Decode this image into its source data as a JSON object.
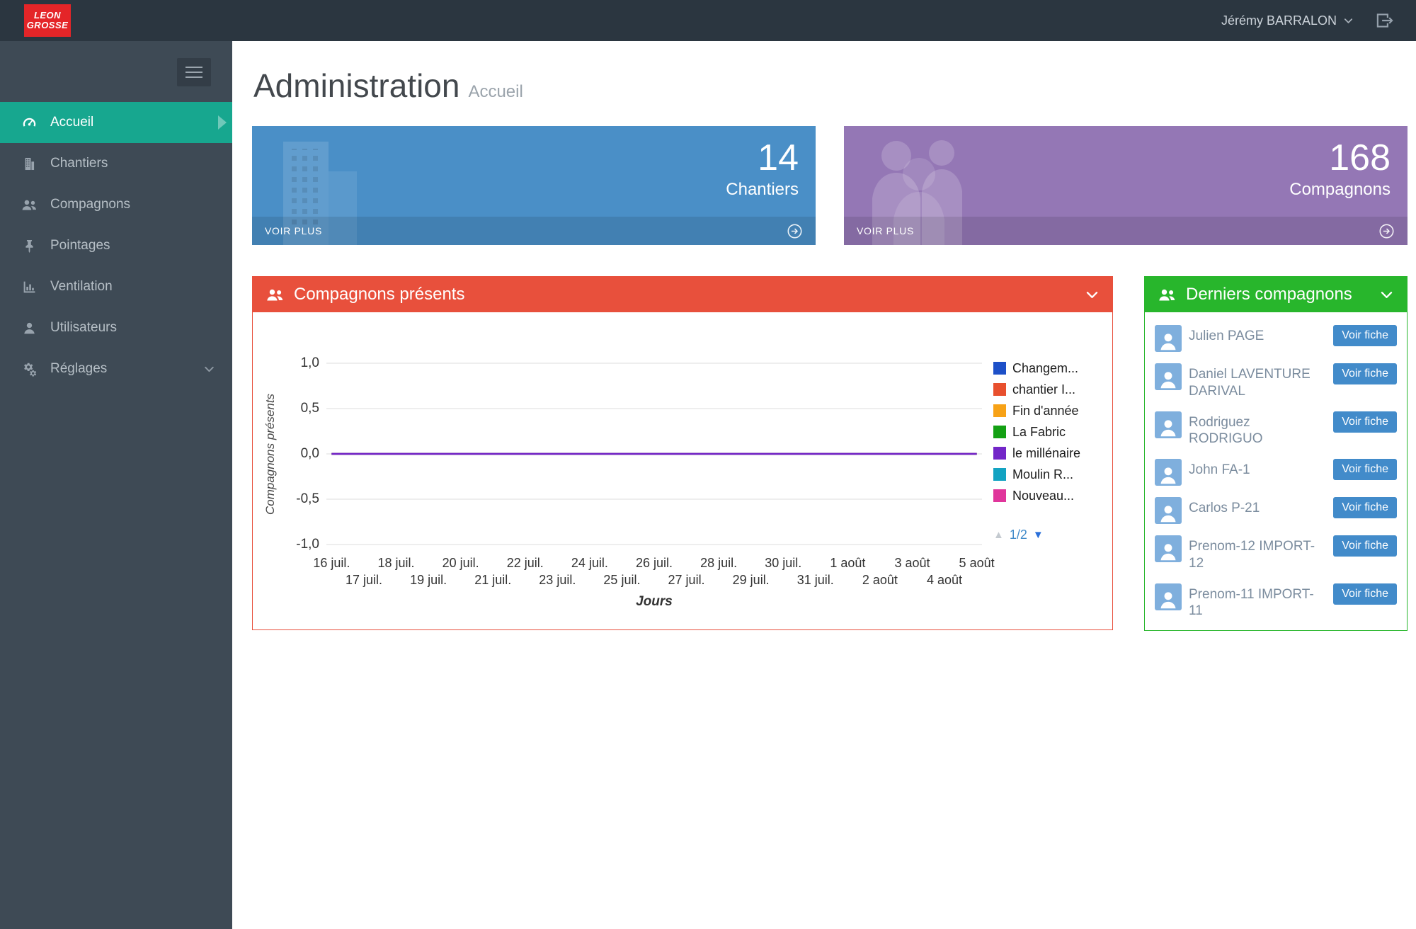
{
  "topbar": {
    "logo_line1": "LEON",
    "logo_line2": "GROSSE",
    "user_name": "Jérémy BARRALON",
    "user_chevron_icon": "chevron-down",
    "logout_icon": "logout"
  },
  "sidebar": {
    "items": [
      {
        "label": "Accueil",
        "icon": "dashboard",
        "active": true
      },
      {
        "label": "Chantiers",
        "icon": "building",
        "active": false
      },
      {
        "label": "Compagnons",
        "icon": "users",
        "active": false
      },
      {
        "label": "Pointages",
        "icon": "pin",
        "active": false
      },
      {
        "label": "Ventilation",
        "icon": "bar-chart",
        "active": false
      },
      {
        "label": "Utilisateurs",
        "icon": "user",
        "active": false
      },
      {
        "label": "Réglages",
        "icon": "gears",
        "active": false,
        "has_submenu": true
      }
    ]
  },
  "page": {
    "title": "Administration",
    "subtitle": "Accueil"
  },
  "stat_cards": [
    {
      "value": "14",
      "label": "Chantiers",
      "action": "VOIR PLUS",
      "color": "#4a8fc7",
      "icon": "building",
      "arrow_icon": "arrow-right-circle"
    },
    {
      "value": "168",
      "label": "Compagnons",
      "action": "VOIR PLUS",
      "color": "#9477b5",
      "icon": "users",
      "arrow_icon": "arrow-right-circle"
    }
  ],
  "presence_panel": {
    "title": "Compagnons présents",
    "icon": "users",
    "collapse_icon": "chevron-down",
    "color": "#e8503c"
  },
  "chart_data": {
    "type": "line",
    "title": "Compagnons présents",
    "xlabel": "Jours",
    "ylabel": "Compagnons présents",
    "ylim": [
      -1.0,
      1.0
    ],
    "ytick_labels": [
      "1,0",
      "0,5",
      "0,0",
      "-0,5",
      "-1,0"
    ],
    "grid": true,
    "legend_position": "right",
    "pagination": "1/2",
    "x": [
      "16 juil.",
      "17 juil.",
      "18 juil.",
      "19 juil.",
      "20 juil.",
      "21 juil.",
      "22 juil.",
      "23 juil.",
      "24 juil.",
      "25 juil.",
      "26 juil.",
      "27 juil.",
      "28 juil.",
      "29 juil.",
      "30 juil.",
      "31 juil.",
      "1 août",
      "2 août",
      "3 août",
      "4 août",
      "5 août"
    ],
    "series": [
      {
        "name": "Changem...",
        "color": "#1d50c8",
        "values": [
          0,
          0,
          0,
          0,
          0,
          0,
          0,
          0,
          0,
          0,
          0,
          0,
          0,
          0,
          0,
          0,
          0,
          0,
          0,
          0,
          0
        ]
      },
      {
        "name": "chantier I...",
        "color": "#e8502e",
        "values": [
          0,
          0,
          0,
          0,
          0,
          0,
          0,
          0,
          0,
          0,
          0,
          0,
          0,
          0,
          0,
          0,
          0,
          0,
          0,
          0,
          0
        ]
      },
      {
        "name": "Fin d'année",
        "color": "#f7a217",
        "values": [
          0,
          0,
          0,
          0,
          0,
          0,
          0,
          0,
          0,
          0,
          0,
          0,
          0,
          0,
          0,
          0,
          0,
          0,
          0,
          0,
          0
        ]
      },
      {
        "name": "La Fabric",
        "color": "#14a014",
        "values": [
          0,
          0,
          0,
          0,
          0,
          0,
          0,
          0,
          0,
          0,
          0,
          0,
          0,
          0,
          0,
          0,
          0,
          0,
          0,
          0,
          0
        ]
      },
      {
        "name": "le millénaire",
        "color": "#7326c8",
        "values": [
          0,
          0,
          0,
          0,
          0,
          0,
          0,
          0,
          0,
          0,
          0,
          0,
          0,
          0,
          0,
          0,
          0,
          0,
          0,
          0,
          0
        ]
      },
      {
        "name": "Moulin R...",
        "color": "#13a3c2",
        "values": [
          0,
          0,
          0,
          0,
          0,
          0,
          0,
          0,
          0,
          0,
          0,
          0,
          0,
          0,
          0,
          0,
          0,
          0,
          0,
          0,
          0
        ]
      },
      {
        "name": "Nouveau...",
        "color": "#e0359b",
        "values": [
          0,
          0,
          0,
          0,
          0,
          0,
          0,
          0,
          0,
          0,
          0,
          0,
          0,
          0,
          0,
          0,
          0,
          0,
          0,
          0,
          0
        ]
      }
    ]
  },
  "latest_panel": {
    "title": "Derniers compagnons",
    "icon": "users",
    "collapse_icon": "chevron-down",
    "color": "#28b62c",
    "action_label": "Voir fiche",
    "people": [
      {
        "name": "Julien PAGE"
      },
      {
        "name": "Daniel LAVENTURE DARIVAL"
      },
      {
        "name": "Rodriguez RODRIGUO"
      },
      {
        "name": "John FA-1"
      },
      {
        "name": "Carlos P-21"
      },
      {
        "name": "Prenom-12 IMPORT-12"
      },
      {
        "name": "Prenom-11 IMPORT-11"
      }
    ]
  },
  "colors": {
    "topbar_bg": "#2b3640",
    "sidebar_bg": "#3e4a55",
    "sidebar_active": "#17a78f",
    "button_blue": "#428bca",
    "logo_red": "#e42528"
  }
}
